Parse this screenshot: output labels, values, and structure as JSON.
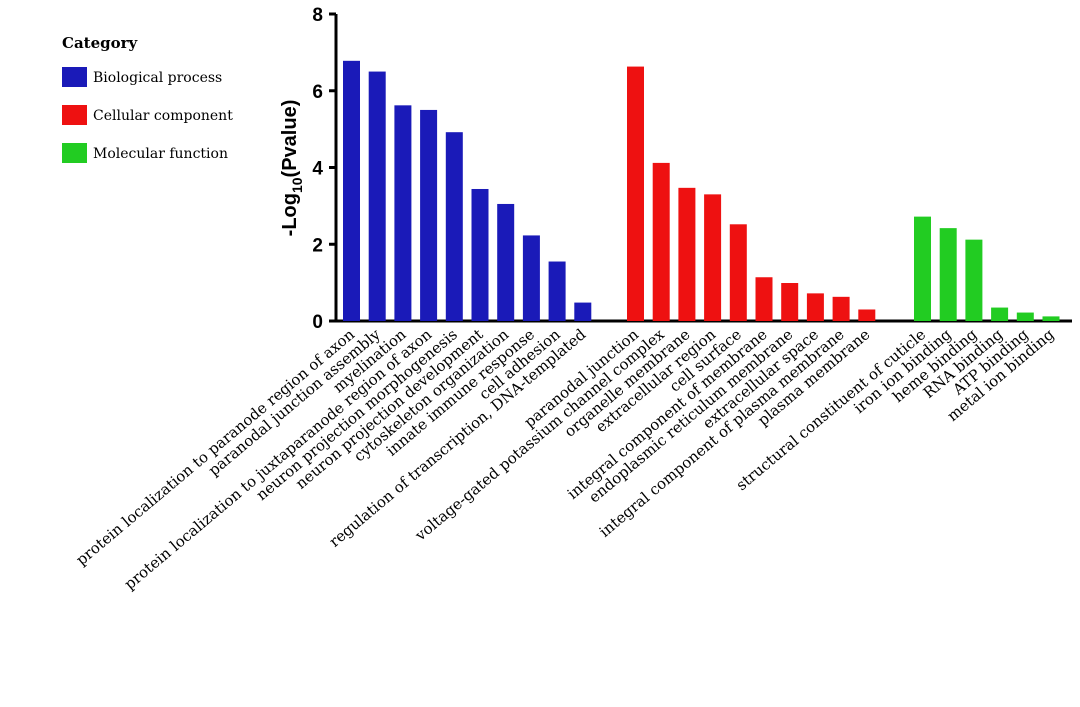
{
  "chart_data": {
    "type": "bar",
    "ylabel_prefix": "-Log",
    "ylabel_subscript": "10",
    "ylabel_suffix": "(Pvalue)",
    "ylim": [
      0,
      8
    ],
    "yticks": [
      "0",
      "2",
      "4",
      "6",
      "8"
    ],
    "grid": false,
    "legend": {
      "title": "Category",
      "position": "top-left",
      "entries": [
        {
          "name": "Biological process",
          "color": "#1a1ab8"
        },
        {
          "name": "Cellular component",
          "color": "#ee1111"
        },
        {
          "name": "Molecular function",
          "color": "#22cc22"
        }
      ]
    },
    "series": [
      {
        "name": "Biological process",
        "color": "#1a1ab8",
        "categories": [
          "protein localization to paranode region of axon",
          "paranodal junction assembly",
          "myelination",
          "protein localization to juxtaparanode region of axon",
          "neuron projection morphogenesis",
          "neuron projection development",
          "cytoskeleton organization",
          "innate immune response",
          "cell adhesion",
          "regulation of transcription, DNA-templated"
        ],
        "values": [
          6.78,
          6.5,
          5.62,
          5.5,
          4.92,
          3.44,
          3.05,
          2.23,
          1.55,
          0.48
        ]
      },
      {
        "name": "Cellular component",
        "color": "#ee1111",
        "categories": [
          "paranodal junction",
          "voltage-gated potassium channel complex",
          "organelle membrane",
          "extracellular region",
          "cell surface",
          "integral component of membrane",
          "endoplasmic reticulum membrane",
          "extracellular space",
          "integral component of plasma membrane",
          "plasma membrane"
        ],
        "values": [
          6.63,
          4.12,
          3.47,
          3.3,
          2.52,
          1.14,
          0.99,
          0.72,
          0.63,
          0.3
        ]
      },
      {
        "name": "Molecular function",
        "color": "#22cc22",
        "categories": [
          "structural constituent of cuticle",
          "iron ion binding",
          "heme binding",
          "RNA binding",
          "ATP binding",
          "metal ion binding"
        ],
        "values": [
          2.72,
          2.42,
          2.12,
          0.35,
          0.22,
          0.12
        ]
      }
    ]
  }
}
